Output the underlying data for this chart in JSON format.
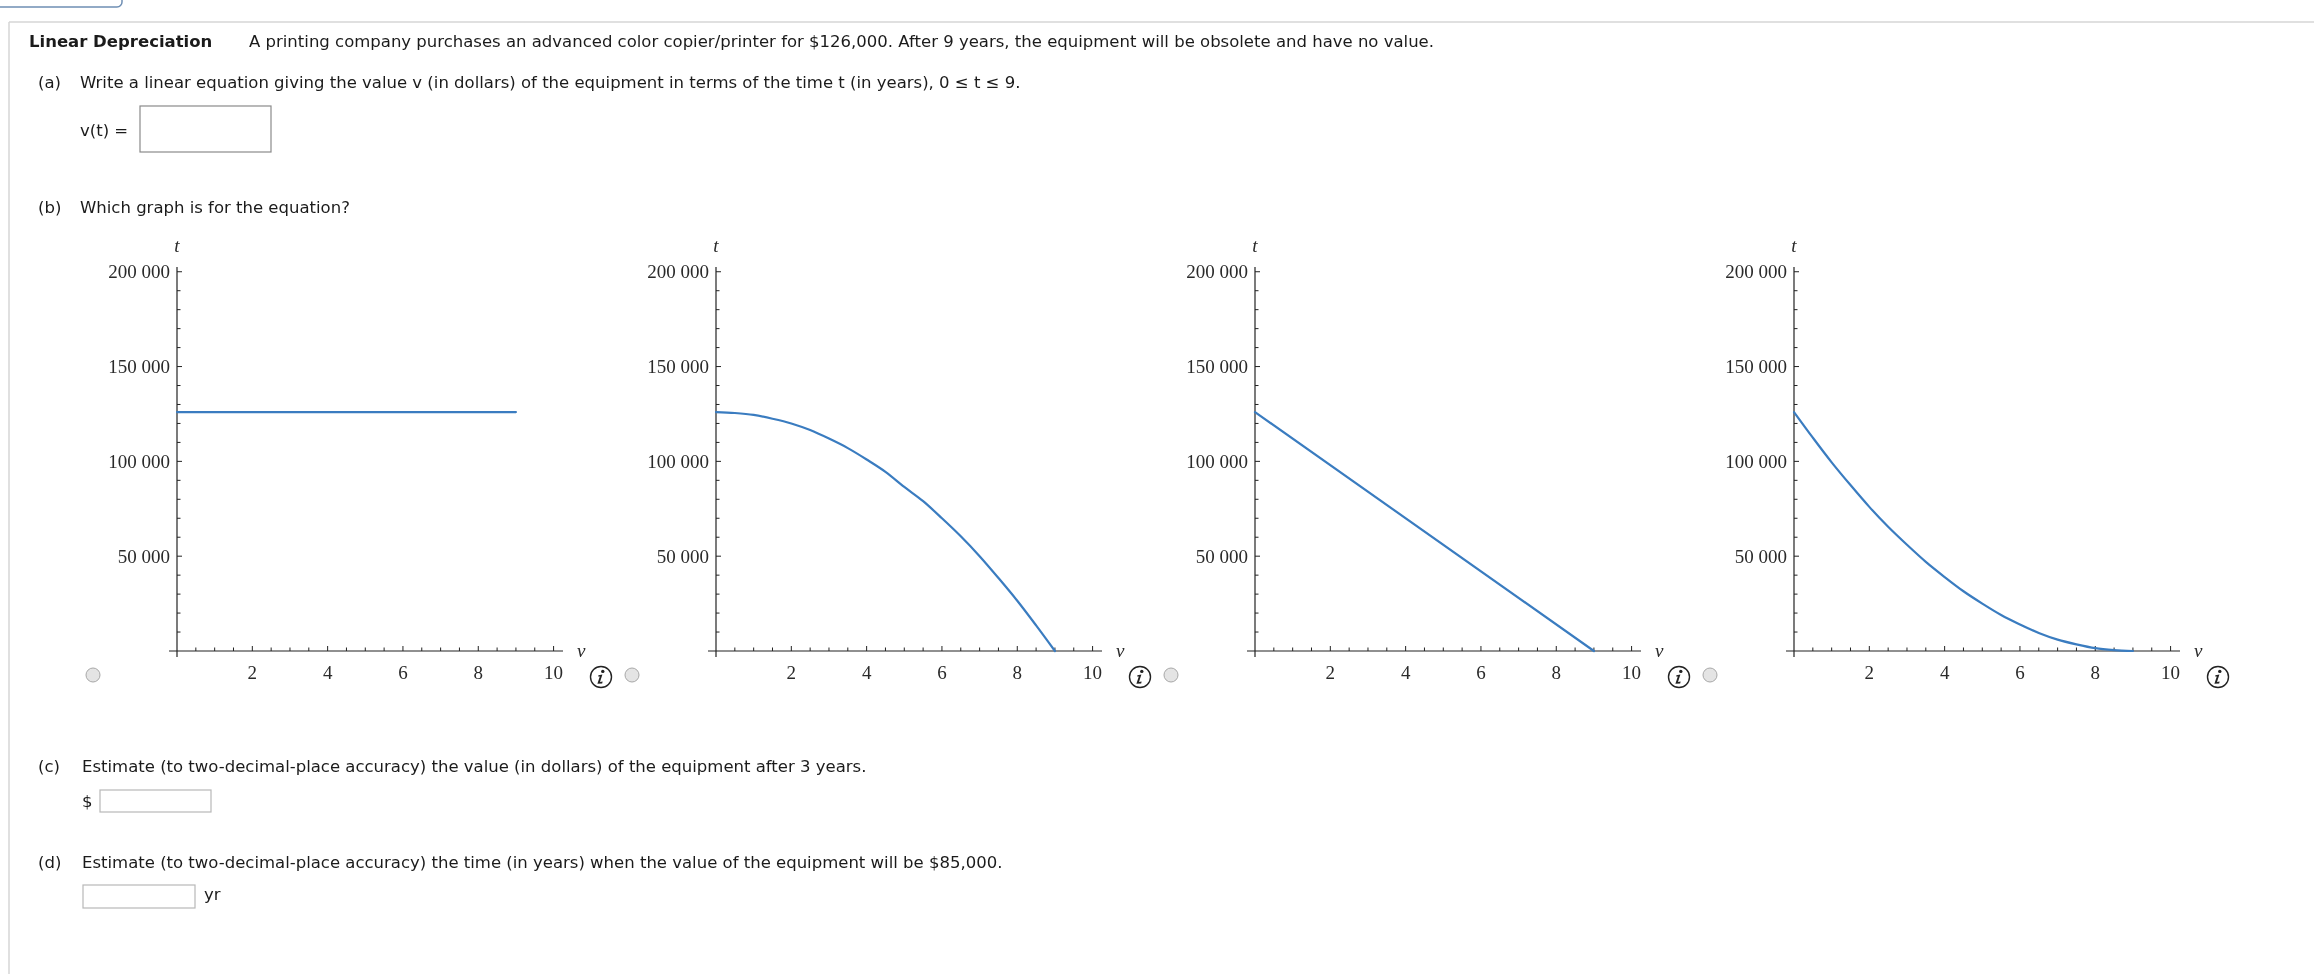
{
  "chart_data": [
    {
      "type": "other",
      "title": "Linear Depreciation",
      "subtitle": "A printing company purchases an advanced color copier/printer for $126,000. After 9 years, the equipment will be obsolete and have no value.",
      "annotations": [
        "(a)",
        "Write a linear equation giving the value v (in dollars) of the equipment in terms of the time t (in years), 0 ≤ t ≤ 9.",
        "v(t) =",
        "(b)",
        "Which graph is for the equation?"
      ]
    },
    {
      "type": "line",
      "xlabel": "v",
      "ylabel": "t",
      "x": [
        0,
        9
      ],
      "values": [
        126000,
        126000
      ],
      "color": "#3a7cc0",
      "xlim": [
        0,
        10.25
      ],
      "ylim": [
        0,
        202500
      ],
      "xticks": [
        {
          "value": 0.5,
          "label": null
        },
        {
          "value": 1,
          "label": null
        },
        {
          "value": 1.5,
          "label": null
        },
        2,
        {
          "value": 2.5,
          "label": null
        },
        {
          "value": 3,
          "label": null
        },
        {
          "value": 3.5,
          "label": null
        },
        4,
        {
          "value": 4.5,
          "label": null
        },
        {
          "value": 5,
          "label": null
        },
        {
          "value": 5.5,
          "label": null
        },
        6,
        {
          "value": 6.5,
          "label": null
        },
        {
          "value": 7,
          "label": null
        },
        {
          "value": 7.5,
          "label": null
        },
        8,
        {
          "value": 8.5,
          "label": null
        },
        {
          "value": 9,
          "label": null
        },
        {
          "value": 9.5,
          "label": null
        },
        10
      ],
      "yticks": [
        {
          "value": 10000,
          "label": null
        },
        {
          "value": 20000,
          "label": null
        },
        {
          "value": 30000,
          "label": null
        },
        {
          "value": 40000,
          "label": null
        },
        {
          "value": 50000,
          "label": "50 000"
        },
        {
          "value": 60000,
          "label": null
        },
        {
          "value": 70000,
          "label": null
        },
        {
          "value": 80000,
          "label": null
        },
        {
          "value": 90000,
          "label": null
        },
        {
          "value": 100000,
          "label": "100 000"
        },
        {
          "value": 110000,
          "label": null
        },
        {
          "value": 120000,
          "label": null
        },
        {
          "value": 130000,
          "label": null
        },
        {
          "value": 140000,
          "label": null
        },
        {
          "value": 150000,
          "label": "150 000"
        },
        {
          "value": 160000,
          "label": null
        },
        {
          "value": 170000,
          "label": null
        },
        {
          "value": 180000,
          "label": null
        },
        {
          "value": 190000,
          "label": null
        },
        {
          "value": 200000,
          "label": "200 000"
        }
      ]
    },
    {
      "type": "line",
      "xlabel": "v",
      "ylabel": "t",
      "x": [
        0,
        0.5,
        1,
        1.5,
        2,
        2.5,
        3,
        3.5,
        4,
        4.5,
        5,
        5.5,
        6,
        6.5,
        7,
        7.5,
        8,
        8.5,
        9
      ],
      "values": [
        126000,
        125500,
        124500,
        122500,
        120000,
        116500,
        112000,
        107000,
        101000,
        94500,
        86500,
        79000,
        70000,
        60500,
        50000,
        38500,
        26500,
        13500,
        0
      ],
      "color": "#3a7cc0",
      "xlim": [
        0,
        10.25
      ],
      "ylim": [
        0,
        202500
      ],
      "xticks": [
        {
          "value": 0.5,
          "label": null
        },
        {
          "value": 1,
          "label": null
        },
        {
          "value": 1.5,
          "label": null
        },
        2,
        {
          "value": 2.5,
          "label": null
        },
        {
          "value": 3,
          "label": null
        },
        {
          "value": 3.5,
          "label": null
        },
        4,
        {
          "value": 4.5,
          "label": null
        },
        {
          "value": 5,
          "label": null
        },
        {
          "value": 5.5,
          "label": null
        },
        6,
        {
          "value": 6.5,
          "label": null
        },
        {
          "value": 7,
          "label": null
        },
        {
          "value": 7.5,
          "label": null
        },
        8,
        {
          "value": 8.5,
          "label": null
        },
        {
          "value": 9,
          "label": null
        },
        {
          "value": 9.5,
          "label": null
        },
        10
      ],
      "yticks": [
        {
          "value": 10000,
          "label": null
        },
        {
          "value": 20000,
          "label": null
        },
        {
          "value": 30000,
          "label": null
        },
        {
          "value": 40000,
          "label": null
        },
        {
          "value": 50000,
          "label": "50 000"
        },
        {
          "value": 60000,
          "label": null
        },
        {
          "value": 70000,
          "label": null
        },
        {
          "value": 80000,
          "label": null
        },
        {
          "value": 90000,
          "label": null
        },
        {
          "value": 100000,
          "label": "100 000"
        },
        {
          "value": 110000,
          "label": null
        },
        {
          "value": 120000,
          "label": null
        },
        {
          "value": 130000,
          "label": null
        },
        {
          "value": 140000,
          "label": null
        },
        {
          "value": 150000,
          "label": "150 000"
        },
        {
          "value": 160000,
          "label": null
        },
        {
          "value": 170000,
          "label": null
        },
        {
          "value": 180000,
          "label": null
        },
        {
          "value": 190000,
          "label": null
        },
        {
          "value": 200000,
          "label": "200 000"
        }
      ]
    },
    {
      "type": "line",
      "xlabel": "v",
      "ylabel": "t",
      "x": [
        0,
        9
      ],
      "values": [
        126000,
        0
      ],
      "color": "#3a7cc0",
      "xlim": [
        0,
        10.25
      ],
      "ylim": [
        0,
        202500
      ],
      "xticks": [
        {
          "value": 0.5,
          "label": null
        },
        {
          "value": 1,
          "label": null
        },
        {
          "value": 1.5,
          "label": null
        },
        2,
        {
          "value": 2.5,
          "label": null
        },
        {
          "value": 3,
          "label": null
        },
        {
          "value": 3.5,
          "label": null
        },
        4,
        {
          "value": 4.5,
          "label": null
        },
        {
          "value": 5,
          "label": null
        },
        {
          "value": 5.5,
          "label": null
        },
        6,
        {
          "value": 6.5,
          "label": null
        },
        {
          "value": 7,
          "label": null
        },
        {
          "value": 7.5,
          "label": null
        },
        8,
        {
          "value": 8.5,
          "label": null
        },
        {
          "value": 9,
          "label": null
        },
        {
          "value": 9.5,
          "label": null
        },
        10
      ],
      "yticks": [
        {
          "value": 10000,
          "label": null
        },
        {
          "value": 20000,
          "label": null
        },
        {
          "value": 30000,
          "label": null
        },
        {
          "value": 40000,
          "label": null
        },
        {
          "value": 50000,
          "label": "50 000"
        },
        {
          "value": 60000,
          "label": null
        },
        {
          "value": 70000,
          "label": null
        },
        {
          "value": 80000,
          "label": null
        },
        {
          "value": 90000,
          "label": null
        },
        {
          "value": 100000,
          "label": "100 000"
        },
        {
          "value": 110000,
          "label": null
        },
        {
          "value": 120000,
          "label": null
        },
        {
          "value": 130000,
          "label": null
        },
        {
          "value": 140000,
          "label": null
        },
        {
          "value": 150000,
          "label": "150 000"
        },
        {
          "value": 160000,
          "label": null
        },
        {
          "value": 170000,
          "label": null
        },
        {
          "value": 180000,
          "label": null
        },
        {
          "value": 190000,
          "label": null
        },
        {
          "value": 200000,
          "label": "200 000"
        }
      ]
    },
    {
      "type": "line",
      "xlabel": "v",
      "ylabel": "t",
      "x": [
        0,
        0.5,
        1,
        1.5,
        2,
        2.5,
        3,
        3.5,
        4,
        4.5,
        5,
        5.5,
        6,
        6.5,
        7,
        7.5,
        8,
        8.5,
        9
      ],
      "values": [
        126000,
        112500,
        99500,
        87500,
        76000,
        65500,
        56000,
        47000,
        39000,
        31500,
        25000,
        19000,
        14000,
        9500,
        6000,
        3500,
        1500,
        500,
        0
      ],
      "color": "#3a7cc0",
      "xlim": [
        0,
        10.25
      ],
      "ylim": [
        0,
        202500
      ],
      "xticks": [
        {
          "value": 0.5,
          "label": null
        },
        {
          "value": 1,
          "label": null
        },
        {
          "value": 1.5,
          "label": null
        },
        2,
        {
          "value": 2.5,
          "label": null
        },
        {
          "value": 3,
          "label": null
        },
        {
          "value": 3.5,
          "label": null
        },
        4,
        {
          "value": 4.5,
          "label": null
        },
        {
          "value": 5,
          "label": null
        },
        {
          "value": 5.5,
          "label": null
        },
        6,
        {
          "value": 6.5,
          "label": null
        },
        {
          "value": 7,
          "label": null
        },
        {
          "value": 7.5,
          "label": null
        },
        8,
        {
          "value": 8.5,
          "label": null
        },
        {
          "value": 9,
          "label": null
        },
        {
          "value": 9.5,
          "label": null
        },
        10
      ],
      "yticks": [
        {
          "value": 10000,
          "label": null
        },
        {
          "value": 20000,
          "label": null
        },
        {
          "value": 30000,
          "label": null
        },
        {
          "value": 40000,
          "label": null
        },
        {
          "value": 50000,
          "label": "50 000"
        },
        {
          "value": 60000,
          "label": null
        },
        {
          "value": 70000,
          "label": null
        },
        {
          "value": 80000,
          "label": null
        },
        {
          "value": 90000,
          "label": null
        },
        {
          "value": 100000,
          "label": "100 000"
        },
        {
          "value": 110000,
          "label": null
        },
        {
          "value": 120000,
          "label": null
        },
        {
          "value": 130000,
          "label": null
        },
        {
          "value": 140000,
          "label": null
        },
        {
          "value": 150000,
          "label": "150 000"
        },
        {
          "value": 160000,
          "label": null
        },
        {
          "value": 170000,
          "label": null
        },
        {
          "value": 180000,
          "label": null
        },
        {
          "value": 190000,
          "label": null
        },
        {
          "value": 200000,
          "label": "200 000"
        }
      ]
    },
    {
      "type": "other",
      "annotations": [
        "(c)",
        "Estimate (to two-decimal-place accuracy) the value (in dollars) of the equipment after 3 years.",
        "$",
        "(d)",
        "Estimate (to two-decimal-place accuracy) the time (in years) when the value of the equipment will be $85,000.",
        "yr"
      ]
    }
  ]
}
